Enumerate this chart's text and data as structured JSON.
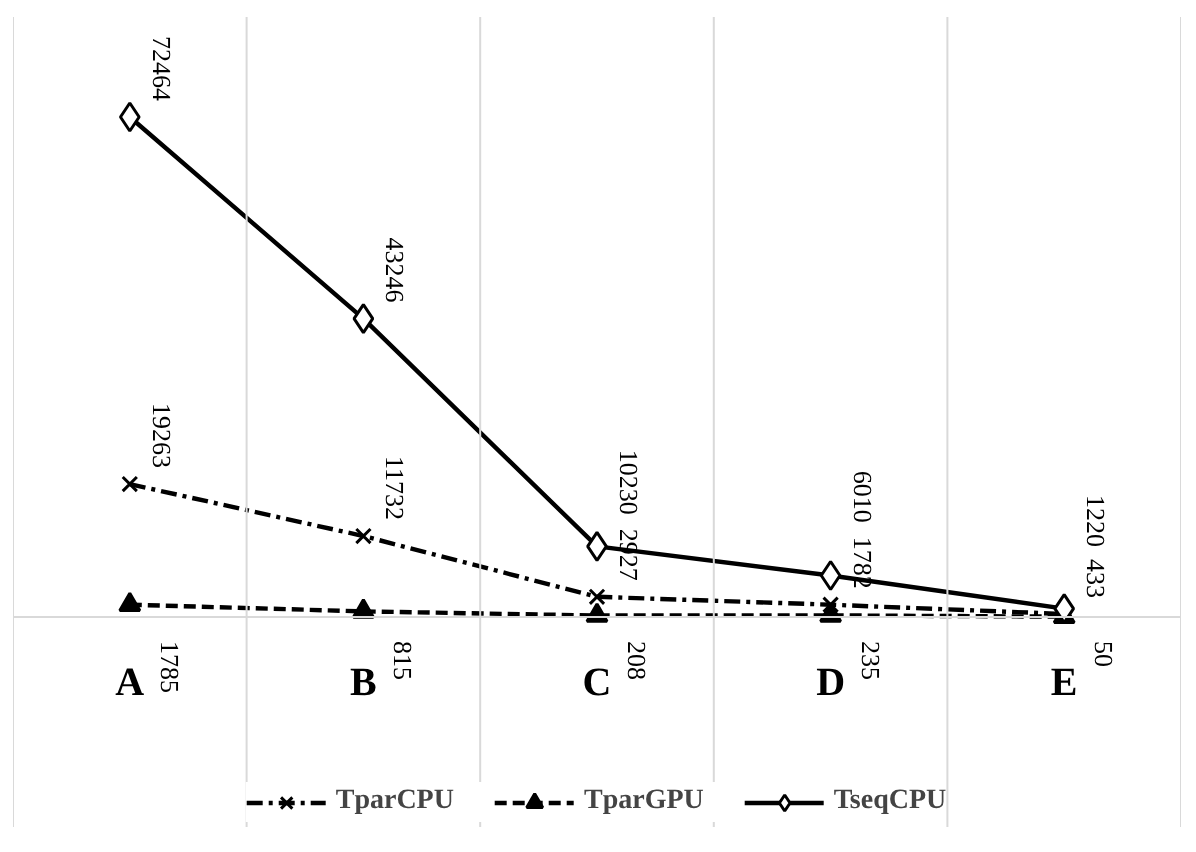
{
  "chart_data": {
    "type": "line",
    "categories": [
      "A",
      "B",
      "C",
      "D",
      "E"
    ],
    "data_labels": true,
    "grid": "x",
    "legend": "bottom",
    "series": [
      {
        "name": "TparCPU",
        "color": "#000000",
        "marker": "cross",
        "line_style": "dashdot",
        "values": [
          19263,
          11732,
          2927,
          1782,
          433
        ]
      },
      {
        "name": "TparGPU",
        "color": "#000000",
        "marker": "triangle",
        "line_style": "dashed",
        "values": [
          1785,
          815,
          208,
          235,
          50
        ]
      },
      {
        "name": "TseqCPU",
        "color": "#000000",
        "marker": "diamond",
        "line_style": "solid",
        "values": [
          72464,
          43246,
          10230,
          6010,
          1220
        ]
      }
    ]
  }
}
